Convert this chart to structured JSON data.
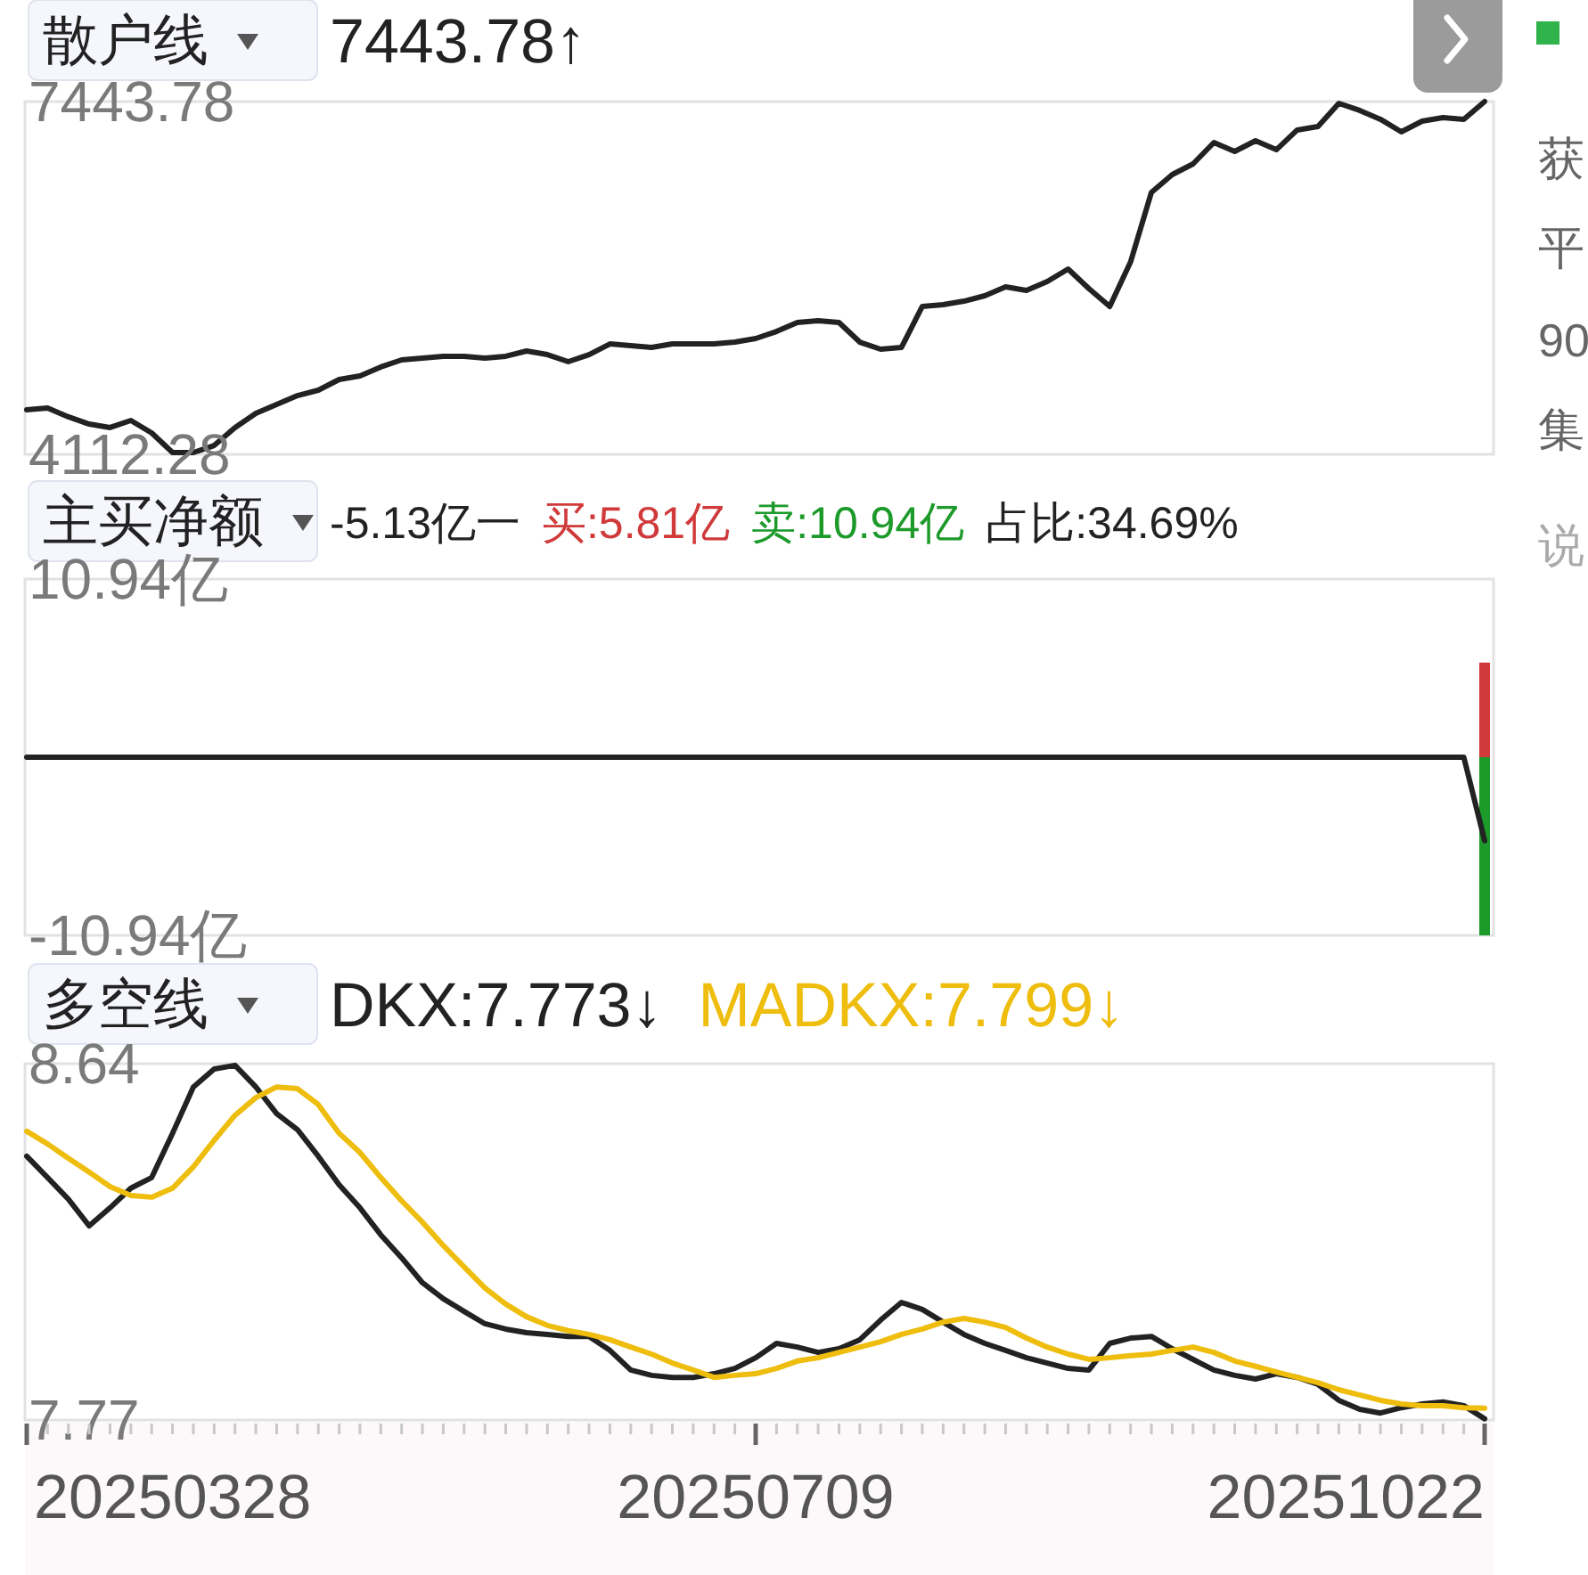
{
  "chart_data": [
    {
      "type": "line",
      "title": "散户线",
      "subtitle": "7443.78↑",
      "tick_labels": "y",
      "categories": [
        null,
        null,
        null,
        null,
        null,
        null,
        null,
        null,
        null,
        null,
        null,
        null,
        null,
        null,
        null,
        null,
        null,
        null,
        null,
        null,
        null,
        null,
        null,
        null,
        null,
        null,
        null,
        null,
        null,
        null,
        null,
        null,
        null,
        null,
        null,
        null,
        null,
        null,
        null,
        null,
        null,
        null,
        null,
        null,
        null,
        null,
        null,
        null,
        null,
        null,
        null,
        null,
        null,
        null,
        null,
        null,
        null,
        null,
        null,
        null,
        null,
        null,
        null,
        null,
        null,
        null,
        null,
        null,
        null,
        null,
        null
      ],
      "ylim": [
        4112.28,
        7443.78
      ],
      "yticks": [
        7443.78,
        4112.28
      ],
      "series": [
        {
          "color": "#222222",
          "values": [
            4533,
            4550,
            4466,
            4398,
            4365,
            4432,
            4314,
            4129,
            4129,
            4196,
            4365,
            4499,
            4583,
            4667,
            4718,
            4819,
            4853,
            4937,
            5004,
            5021,
            5038,
            5038,
            5021,
            5038,
            5088,
            5054,
            4987,
            5054,
            5155,
            5139,
            5122,
            5155,
            5155,
            5155,
            5172,
            5206,
            5273,
            5357,
            5374,
            5357,
            5172,
            5105,
            5122,
            5509,
            5526,
            5559,
            5610,
            5694,
            5660,
            5744,
            5862,
            5677,
            5509,
            5929,
            6586,
            6754,
            6855,
            7057,
            6973,
            7074,
            6989,
            7175,
            7208,
            7427,
            7360,
            7276,
            7158,
            7259,
            7292,
            7276,
            7443.78
          ]
        }
      ]
    },
    {
      "type": "line",
      "title": "主买净额",
      "tick_labels": "y",
      "annotations": [
        "-5.13亿一",
        "占比:34.69%"
      ],
      "categories": [
        null,
        null,
        null,
        null,
        null,
        null,
        null,
        null,
        null,
        null,
        null,
        null,
        null,
        null,
        null,
        null,
        null,
        null,
        null,
        null,
        null,
        null,
        null,
        null,
        null,
        null,
        null,
        null,
        null,
        null,
        null,
        null,
        null,
        null,
        null,
        null,
        null,
        null,
        null,
        null,
        null,
        null,
        null,
        null,
        null,
        null,
        null,
        null,
        null,
        null,
        null,
        null,
        null,
        null,
        null,
        null,
        null,
        null,
        null,
        null,
        null,
        null,
        null,
        null,
        null,
        null,
        null,
        null,
        null,
        null,
        null
      ],
      "ylim": [
        -10.94,
        10.94
      ],
      "yticks": [
        {
          "value": 10.94,
          "label": "10.94亿"
        },
        {
          "value": -10.94,
          "label": "-10.94亿"
        }
      ],
      "series": [
        {
          "type": "bar",
          "name": "买:5.81亿",
          "color": "#d03a3a",
          "values": [
            null,
            null,
            null,
            null,
            null,
            null,
            null,
            null,
            null,
            null,
            null,
            null,
            null,
            null,
            null,
            null,
            null,
            null,
            null,
            null,
            null,
            null,
            null,
            null,
            null,
            null,
            null,
            null,
            null,
            null,
            null,
            null,
            null,
            null,
            null,
            null,
            null,
            null,
            null,
            null,
            null,
            null,
            null,
            null,
            null,
            null,
            null,
            null,
            null,
            null,
            null,
            null,
            null,
            null,
            null,
            null,
            null,
            null,
            null,
            null,
            null,
            null,
            null,
            null,
            null,
            null,
            null,
            null,
            null,
            null,
            5.81
          ]
        },
        {
          "type": "bar",
          "name": "卖:10.94亿",
          "color": "#1c9a2a",
          "values": [
            null,
            null,
            null,
            null,
            null,
            null,
            null,
            null,
            null,
            null,
            null,
            null,
            null,
            null,
            null,
            null,
            null,
            null,
            null,
            null,
            null,
            null,
            null,
            null,
            null,
            null,
            null,
            null,
            null,
            null,
            null,
            null,
            null,
            null,
            null,
            null,
            null,
            null,
            null,
            null,
            null,
            null,
            null,
            null,
            null,
            null,
            null,
            null,
            null,
            null,
            null,
            null,
            null,
            null,
            null,
            null,
            null,
            null,
            null,
            null,
            null,
            null,
            null,
            null,
            null,
            null,
            null,
            null,
            null,
            null,
            -10.94
          ]
        },
        {
          "type": "line",
          "color": "#222222",
          "values": [
            0,
            0,
            0,
            0,
            0,
            0,
            0,
            0,
            0,
            0,
            0,
            0,
            0,
            0,
            0,
            0,
            0,
            0,
            0,
            0,
            0,
            0,
            0,
            0,
            0,
            0,
            0,
            0,
            0,
            0,
            0,
            0,
            0,
            0,
            0,
            0,
            0,
            0,
            0,
            0,
            0,
            0,
            0,
            0,
            0,
            0,
            0,
            0,
            0,
            0,
            0,
            0,
            0,
            0,
            0,
            0,
            0,
            0,
            0,
            0,
            0,
            0,
            0,
            0,
            0,
            0,
            0,
            0,
            0,
            0,
            -5.13
          ]
        }
      ]
    },
    {
      "type": "line",
      "title": "多空线",
      "annotations": [
        "20250328",
        "20250709",
        "20251022"
      ],
      "categories": [
        null,
        null,
        null,
        null,
        null,
        null,
        null,
        null,
        null,
        null,
        null,
        null,
        null,
        null,
        null,
        null,
        null,
        null,
        null,
        null,
        null,
        null,
        null,
        null,
        null,
        null,
        null,
        null,
        null,
        null,
        null,
        null,
        null,
        null,
        null,
        null,
        null,
        null,
        null,
        null,
        null,
        null,
        null,
        null,
        null,
        null,
        null,
        null,
        null,
        null,
        null,
        null,
        null,
        null,
        null,
        null,
        null,
        null,
        null,
        null,
        null,
        null,
        null,
        null,
        null,
        null,
        null,
        null,
        null,
        null,
        null
      ],
      "ylim": [
        7.77,
        8.64
      ],
      "yticks": [
        8.64,
        7.77
      ],
      "series": [
        {
          "name": "DKX:7.773↓",
          "color": "#222222",
          "values": [
            8.414,
            8.362,
            8.309,
            8.244,
            8.288,
            8.336,
            8.362,
            8.47,
            8.583,
            8.627,
            8.636,
            8.583,
            8.518,
            8.479,
            8.414,
            8.344,
            8.288,
            8.222,
            8.166,
            8.105,
            8.066,
            8.035,
            8.005,
            7.992,
            7.983,
            7.979,
            7.974,
            7.974,
            7.94,
            7.892,
            7.879,
            7.874,
            7.874,
            7.883,
            7.896,
            7.922,
            7.957,
            7.948,
            7.935,
            7.944,
            7.966,
            8.014,
            8.057,
            8.04,
            8.009,
            7.979,
            7.957,
            7.94,
            7.922,
            7.909,
            7.896,
            7.892,
            7.957,
            7.97,
            7.974,
            7.944,
            7.918,
            7.892,
            7.879,
            7.87,
            7.883,
            7.874,
            7.857,
            7.818,
            7.796,
            7.787,
            7.8,
            7.809,
            7.814,
            7.805,
            7.773
          ]
        },
        {
          "name": "MADKX:7.799↓",
          "color": "#eebd0d",
          "values": [
            8.475,
            8.444,
            8.409,
            8.375,
            8.34,
            8.318,
            8.314,
            8.336,
            8.388,
            8.453,
            8.514,
            8.557,
            8.583,
            8.579,
            8.54,
            8.47,
            8.423,
            8.362,
            8.305,
            8.253,
            8.196,
            8.144,
            8.092,
            8.053,
            8.022,
            8.001,
            7.988,
            7.979,
            7.966,
            7.948,
            7.931,
            7.909,
            7.892,
            7.874,
            7.879,
            7.883,
            7.896,
            7.914,
            7.922,
            7.935,
            7.948,
            7.961,
            7.979,
            7.992,
            8.009,
            8.018,
            8.009,
            7.996,
            7.97,
            7.948,
            7.931,
            7.918,
            7.922,
            7.927,
            7.931,
            7.94,
            7.948,
            7.935,
            7.914,
            7.901,
            7.887,
            7.874,
            7.861,
            7.844,
            7.831,
            7.818,
            7.809,
            7.805,
            7.805,
            7.8,
            7.799
          ]
        }
      ]
    },
    {
      "type": "other",
      "annotations": [
        "获",
        "平",
        "90",
        "集",
        "说"
      ]
    }
  ]
}
